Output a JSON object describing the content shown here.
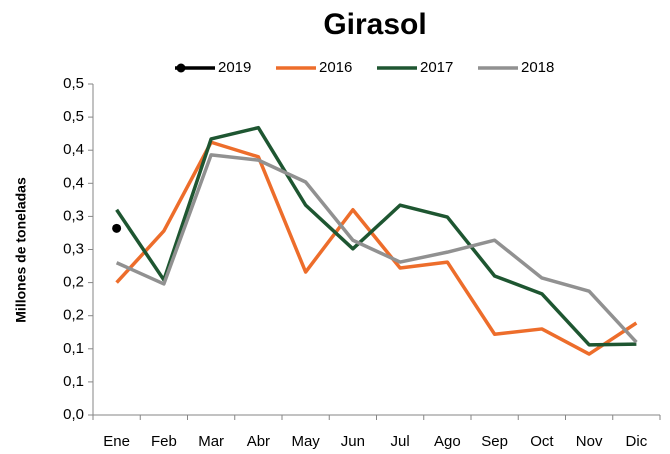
{
  "chart_data": {
    "type": "line",
    "title": "Girasol",
    "y_label": "Millones de toneladas",
    "categories": [
      "Ene",
      "Feb",
      "Mar",
      "Abr",
      "May",
      "Jun",
      "Jul",
      "Ago",
      "Sep",
      "Oct",
      "Nov",
      "Dic"
    ],
    "series": [
      {
        "name": "2019",
        "color": "#000000",
        "values": [
          0.282,
          null,
          null,
          null,
          null,
          null,
          null,
          null,
          null,
          null,
          null,
          null
        ]
      },
      {
        "name": "2016",
        "color": "#ed6d2b",
        "values": [
          0.2,
          0.278,
          0.412,
          0.39,
          0.216,
          0.31,
          0.222,
          0.231,
          0.122,
          0.13,
          0.092,
          0.139
        ]
      },
      {
        "name": "2017",
        "color": "#1e5631",
        "values": [
          0.31,
          0.204,
          0.417,
          0.434,
          0.317,
          0.251,
          0.317,
          0.299,
          0.21,
          0.183,
          0.106,
          0.107
        ]
      },
      {
        "name": "2018",
        "color": "#919191",
        "values": [
          0.23,
          0.198,
          0.393,
          0.385,
          0.352,
          0.264,
          0.231,
          0.246,
          0.264,
          0.207,
          0.187,
          0.11
        ]
      }
    ],
    "ylim": [
      0,
      0.5
    ],
    "yticks": [
      {
        "value": 0,
        "label": "0,0"
      },
      {
        "value": 0.05,
        "label": "0,1"
      },
      {
        "value": 0.1,
        "label": "0,1"
      },
      {
        "value": 0.15,
        "label": "0,2"
      },
      {
        "value": 0.2,
        "label": "0,2"
      },
      {
        "value": 0.25,
        "label": "0,3"
      },
      {
        "value": 0.3,
        "label": "0,3"
      },
      {
        "value": 0.35,
        "label": "0,4"
      },
      {
        "value": 0.4,
        "label": "0,4"
      },
      {
        "value": 0.45,
        "label": "0,5"
      },
      {
        "value": 0.5,
        "label": "0,5"
      }
    ],
    "grid": false,
    "legend": "top"
  }
}
